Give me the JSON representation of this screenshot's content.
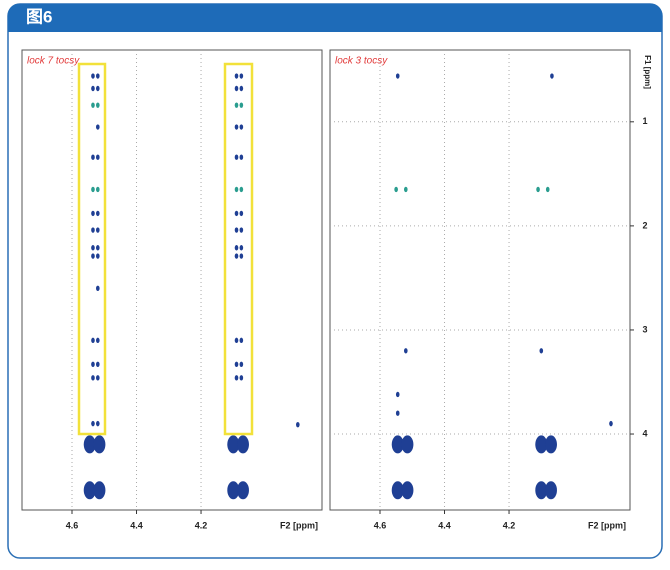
{
  "header": {
    "title": "图6"
  },
  "chart_data": [
    {
      "type": "scatter",
      "title": "lock 7 tocsy",
      "xlabel": "F2 [ppm]",
      "xlim": [
        4.755,
        3.825
      ],
      "ylim": [
        0.31,
        4.73
      ],
      "xticks": [
        4.6,
        4.4,
        4.2
      ],
      "grid": true,
      "series": [
        {
          "color": "#1f3f94",
          "marker_size": 1.8,
          "x": [
            4.535,
            4.52,
            4.535,
            4.52,
            4.535,
            4.52,
            4.52,
            4.535,
            4.52,
            4.535,
            4.52,
            4.535,
            4.52,
            4.535,
            4.52,
            4.535,
            4.52,
            4.52,
            4.535,
            4.52,
            4.535,
            4.52,
            4.535,
            4.52,
            4.09,
            4.075,
            4.09,
            4.075,
            4.09,
            4.075,
            4.09,
            4.075,
            4.09,
            4.075,
            4.09,
            4.075,
            4.09,
            4.075,
            4.09,
            4.075,
            4.09,
            4.075,
            4.09,
            4.075,
            4.09,
            4.075,
            3.9
          ],
          "y": [
            0.56,
            0.56,
            0.68,
            0.68,
            1.34,
            1.34,
            1.05,
            1.88,
            1.88,
            2.04,
            2.04,
            2.21,
            2.21,
            2.29,
            2.29,
            3.1,
            3.1,
            2.6,
            3.33,
            3.33,
            3.46,
            3.46,
            3.9,
            3.9,
            0.56,
            0.56,
            0.68,
            0.68,
            1.05,
            1.05,
            1.34,
            1.34,
            1.88,
            1.88,
            2.04,
            2.04,
            2.21,
            2.21,
            2.29,
            2.29,
            3.1,
            3.1,
            3.33,
            3.33,
            3.46,
            3.46,
            3.91
          ]
        },
        {
          "color": "#2a9d8f",
          "marker_size": 1.8,
          "x": [
            4.535,
            4.52,
            4.535,
            4.52,
            4.09,
            4.075,
            4.09,
            4.075
          ],
          "y": [
            0.84,
            0.84,
            1.65,
            1.65,
            0.84,
            0.84,
            1.65,
            1.65
          ]
        },
        {
          "color": "#1f3f94",
          "marker_size": 6,
          "x": [
            4.545,
            4.515,
            4.545,
            4.515,
            4.1,
            4.07,
            4.1,
            4.07
          ],
          "y": [
            4.1,
            4.1,
            4.54,
            4.54,
            4.1,
            4.1,
            4.54,
            4.54
          ]
        }
      ]
    },
    {
      "type": "scatter",
      "title": "lock 3 tocsy",
      "xlabel": "F2 [ppm]",
      "ylabel": "F1 [ppm]",
      "xlim": [
        4.755,
        3.825
      ],
      "ylim": [
        0.31,
        4.73
      ],
      "xticks": [
        4.6,
        4.4,
        4.2
      ],
      "yticks": [
        1,
        2,
        3,
        4
      ],
      "grid": true,
      "series": [
        {
          "color": "#1f3f94",
          "marker_size": 1.8,
          "x": [
            4.545,
            4.067,
            4.52,
            4.1,
            4.545,
            4.545,
            3.884
          ],
          "y": [
            0.56,
            0.56,
            3.2,
            3.2,
            3.62,
            3.8,
            3.9
          ]
        },
        {
          "color": "#2a9d8f",
          "marker_size": 1.8,
          "x": [
            4.55,
            4.52,
            4.11,
            4.08
          ],
          "y": [
            1.65,
            1.65,
            1.65,
            1.65
          ]
        },
        {
          "color": "#1f3f94",
          "marker_size": 6,
          "x": [
            4.545,
            4.515,
            4.545,
            4.515,
            4.1,
            4.07,
            4.1,
            4.07
          ],
          "y": [
            4.1,
            4.1,
            4.54,
            4.54,
            4.1,
            4.1,
            4.54,
            4.54
          ]
        }
      ]
    }
  ]
}
